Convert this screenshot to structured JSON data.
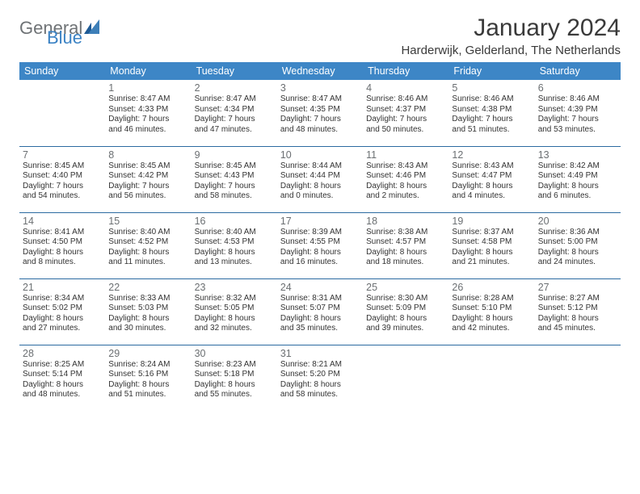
{
  "logo": {
    "part1": "General",
    "part2": "Blue"
  },
  "header": {
    "month_title": "January 2024",
    "location": "Harderwijk, Gelderland, The Netherlands"
  },
  "weekdays": [
    "Sunday",
    "Monday",
    "Tuesday",
    "Wednesday",
    "Thursday",
    "Friday",
    "Saturday"
  ],
  "colors": {
    "header_bg": "#3d86c6",
    "header_text": "#ffffff",
    "row_border": "#2b6aa1",
    "daynum": "#6b6f72",
    "body_text": "#333333",
    "bg": "#ffffff"
  },
  "fonts": {
    "month_title_size": 30,
    "location_size": 15,
    "weekday_size": 12.5,
    "daynum_size": 12.5,
    "info_size": 10
  },
  "weeks": [
    [
      {
        "blank": true
      },
      {
        "day": "1",
        "sunrise": "Sunrise: 8:47 AM",
        "sunset": "Sunset: 4:33 PM",
        "day1": "Daylight: 7 hours",
        "day2": "and 46 minutes."
      },
      {
        "day": "2",
        "sunrise": "Sunrise: 8:47 AM",
        "sunset": "Sunset: 4:34 PM",
        "day1": "Daylight: 7 hours",
        "day2": "and 47 minutes."
      },
      {
        "day": "3",
        "sunrise": "Sunrise: 8:47 AM",
        "sunset": "Sunset: 4:35 PM",
        "day1": "Daylight: 7 hours",
        "day2": "and 48 minutes."
      },
      {
        "day": "4",
        "sunrise": "Sunrise: 8:46 AM",
        "sunset": "Sunset: 4:37 PM",
        "day1": "Daylight: 7 hours",
        "day2": "and 50 minutes."
      },
      {
        "day": "5",
        "sunrise": "Sunrise: 8:46 AM",
        "sunset": "Sunset: 4:38 PM",
        "day1": "Daylight: 7 hours",
        "day2": "and 51 minutes."
      },
      {
        "day": "6",
        "sunrise": "Sunrise: 8:46 AM",
        "sunset": "Sunset: 4:39 PM",
        "day1": "Daylight: 7 hours",
        "day2": "and 53 minutes."
      }
    ],
    [
      {
        "day": "7",
        "sunrise": "Sunrise: 8:45 AM",
        "sunset": "Sunset: 4:40 PM",
        "day1": "Daylight: 7 hours",
        "day2": "and 54 minutes."
      },
      {
        "day": "8",
        "sunrise": "Sunrise: 8:45 AM",
        "sunset": "Sunset: 4:42 PM",
        "day1": "Daylight: 7 hours",
        "day2": "and 56 minutes."
      },
      {
        "day": "9",
        "sunrise": "Sunrise: 8:45 AM",
        "sunset": "Sunset: 4:43 PM",
        "day1": "Daylight: 7 hours",
        "day2": "and 58 minutes."
      },
      {
        "day": "10",
        "sunrise": "Sunrise: 8:44 AM",
        "sunset": "Sunset: 4:44 PM",
        "day1": "Daylight: 8 hours",
        "day2": "and 0 minutes."
      },
      {
        "day": "11",
        "sunrise": "Sunrise: 8:43 AM",
        "sunset": "Sunset: 4:46 PM",
        "day1": "Daylight: 8 hours",
        "day2": "and 2 minutes."
      },
      {
        "day": "12",
        "sunrise": "Sunrise: 8:43 AM",
        "sunset": "Sunset: 4:47 PM",
        "day1": "Daylight: 8 hours",
        "day2": "and 4 minutes."
      },
      {
        "day": "13",
        "sunrise": "Sunrise: 8:42 AM",
        "sunset": "Sunset: 4:49 PM",
        "day1": "Daylight: 8 hours",
        "day2": "and 6 minutes."
      }
    ],
    [
      {
        "day": "14",
        "sunrise": "Sunrise: 8:41 AM",
        "sunset": "Sunset: 4:50 PM",
        "day1": "Daylight: 8 hours",
        "day2": "and 8 minutes."
      },
      {
        "day": "15",
        "sunrise": "Sunrise: 8:40 AM",
        "sunset": "Sunset: 4:52 PM",
        "day1": "Daylight: 8 hours",
        "day2": "and 11 minutes."
      },
      {
        "day": "16",
        "sunrise": "Sunrise: 8:40 AM",
        "sunset": "Sunset: 4:53 PM",
        "day1": "Daylight: 8 hours",
        "day2": "and 13 minutes."
      },
      {
        "day": "17",
        "sunrise": "Sunrise: 8:39 AM",
        "sunset": "Sunset: 4:55 PM",
        "day1": "Daylight: 8 hours",
        "day2": "and 16 minutes."
      },
      {
        "day": "18",
        "sunrise": "Sunrise: 8:38 AM",
        "sunset": "Sunset: 4:57 PM",
        "day1": "Daylight: 8 hours",
        "day2": "and 18 minutes."
      },
      {
        "day": "19",
        "sunrise": "Sunrise: 8:37 AM",
        "sunset": "Sunset: 4:58 PM",
        "day1": "Daylight: 8 hours",
        "day2": "and 21 minutes."
      },
      {
        "day": "20",
        "sunrise": "Sunrise: 8:36 AM",
        "sunset": "Sunset: 5:00 PM",
        "day1": "Daylight: 8 hours",
        "day2": "and 24 minutes."
      }
    ],
    [
      {
        "day": "21",
        "sunrise": "Sunrise: 8:34 AM",
        "sunset": "Sunset: 5:02 PM",
        "day1": "Daylight: 8 hours",
        "day2": "and 27 minutes."
      },
      {
        "day": "22",
        "sunrise": "Sunrise: 8:33 AM",
        "sunset": "Sunset: 5:03 PM",
        "day1": "Daylight: 8 hours",
        "day2": "and 30 minutes."
      },
      {
        "day": "23",
        "sunrise": "Sunrise: 8:32 AM",
        "sunset": "Sunset: 5:05 PM",
        "day1": "Daylight: 8 hours",
        "day2": "and 32 minutes."
      },
      {
        "day": "24",
        "sunrise": "Sunrise: 8:31 AM",
        "sunset": "Sunset: 5:07 PM",
        "day1": "Daylight: 8 hours",
        "day2": "and 35 minutes."
      },
      {
        "day": "25",
        "sunrise": "Sunrise: 8:30 AM",
        "sunset": "Sunset: 5:09 PM",
        "day1": "Daylight: 8 hours",
        "day2": "and 39 minutes."
      },
      {
        "day": "26",
        "sunrise": "Sunrise: 8:28 AM",
        "sunset": "Sunset: 5:10 PM",
        "day1": "Daylight: 8 hours",
        "day2": "and 42 minutes."
      },
      {
        "day": "27",
        "sunrise": "Sunrise: 8:27 AM",
        "sunset": "Sunset: 5:12 PM",
        "day1": "Daylight: 8 hours",
        "day2": "and 45 minutes."
      }
    ],
    [
      {
        "day": "28",
        "sunrise": "Sunrise: 8:25 AM",
        "sunset": "Sunset: 5:14 PM",
        "day1": "Daylight: 8 hours",
        "day2": "and 48 minutes."
      },
      {
        "day": "29",
        "sunrise": "Sunrise: 8:24 AM",
        "sunset": "Sunset: 5:16 PM",
        "day1": "Daylight: 8 hours",
        "day2": "and 51 minutes."
      },
      {
        "day": "30",
        "sunrise": "Sunrise: 8:23 AM",
        "sunset": "Sunset: 5:18 PM",
        "day1": "Daylight: 8 hours",
        "day2": "and 55 minutes."
      },
      {
        "day": "31",
        "sunrise": "Sunrise: 8:21 AM",
        "sunset": "Sunset: 5:20 PM",
        "day1": "Daylight: 8 hours",
        "day2": "and 58 minutes."
      },
      {
        "blank": true
      },
      {
        "blank": true
      },
      {
        "blank": true
      }
    ]
  ]
}
